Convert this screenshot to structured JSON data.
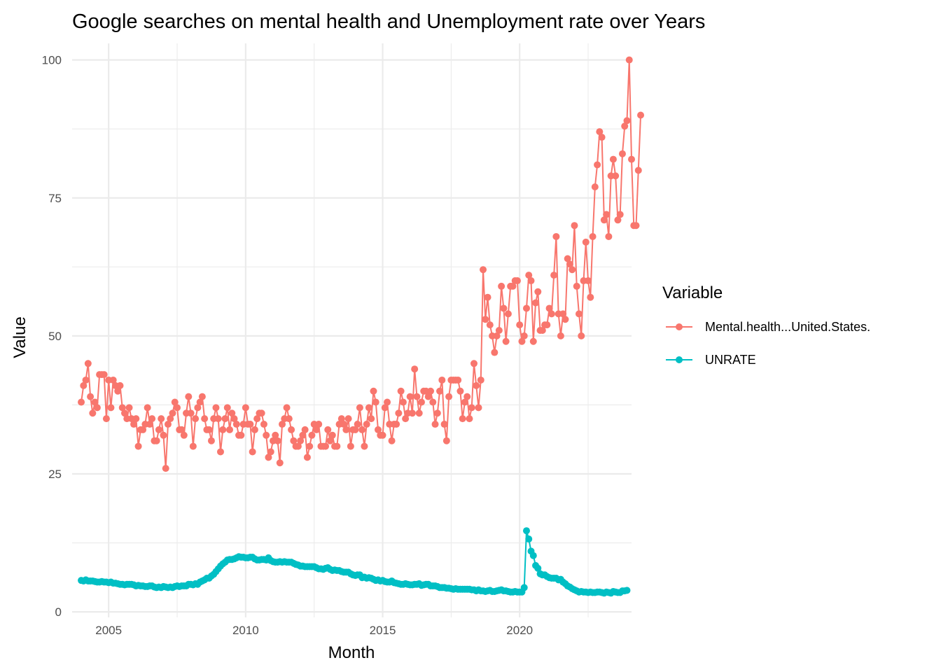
{
  "chart_data": {
    "type": "line",
    "title": "Google searches on mental health and Unemployment rate over Years",
    "xlabel": "Month",
    "ylabel": "Value",
    "x_ticks": [
      "2005",
      "2010",
      "2015",
      "2020"
    ],
    "y_ticks": [
      "0",
      "25",
      "50",
      "75",
      "100"
    ],
    "xlim": [
      "2003-09",
      "2024-02"
    ],
    "ylim": [
      -1,
      103
    ],
    "grid": true,
    "legend_position": "right",
    "legend_title": "Variable",
    "x_start": "2004-01",
    "x_step": "1 month",
    "series": [
      {
        "name": "Mental.health...United.States.",
        "color": "#F8766D",
        "values": [
          38,
          41,
          42,
          45,
          39,
          36,
          38,
          37,
          43,
          43,
          43,
          35,
          42,
          37,
          42,
          41,
          40,
          41,
          37,
          36,
          35,
          37,
          35,
          34,
          35,
          30,
          33,
          33,
          34,
          37,
          34,
          35,
          31,
          31,
          33,
          35,
          32,
          26,
          34,
          35,
          36,
          38,
          37,
          33,
          33,
          32,
          36,
          39,
          36,
          30,
          35,
          37,
          38,
          39,
          35,
          33,
          33,
          31,
          35,
          37,
          35,
          29,
          33,
          35,
          37,
          33,
          36,
          35,
          34,
          32,
          32,
          34,
          37,
          34,
          34,
          29,
          33,
          35,
          36,
          36,
          34,
          32,
          28,
          29,
          31,
          32,
          31,
          27,
          34,
          35,
          37,
          35,
          33,
          31,
          30,
          30,
          31,
          32,
          33,
          28,
          30,
          32,
          34,
          33,
          34,
          30,
          30,
          30,
          33,
          31,
          32,
          30,
          30,
          34,
          35,
          34,
          33,
          35,
          30,
          33,
          33,
          34,
          37,
          33,
          30,
          34,
          37,
          35,
          40,
          38,
          33,
          32,
          32,
          37,
          38,
          34,
          31,
          34,
          34,
          36,
          40,
          38,
          35,
          36,
          39,
          36,
          44,
          39,
          36,
          38,
          40,
          40,
          39,
          40,
          38,
          34,
          36,
          40,
          42,
          34,
          31,
          39,
          42,
          42,
          42,
          42,
          40,
          35,
          38,
          39,
          35,
          37,
          45,
          41,
          37,
          42,
          62,
          53,
          57,
          52,
          50,
          47,
          50,
          51,
          59,
          55,
          49,
          54,
          59,
          59,
          60,
          60,
          52,
          49,
          50,
          55,
          61,
          60,
          49,
          56,
          58,
          51,
          51,
          52,
          52,
          55,
          54,
          61,
          68,
          54,
          50,
          54,
          53,
          64,
          63,
          62,
          70,
          59,
          54,
          50,
          60,
          67,
          60,
          57,
          68,
          77,
          81,
          87,
          86,
          71,
          72,
          68,
          79,
          82,
          79,
          71,
          72,
          83,
          88,
          89,
          100,
          82,
          70,
          70,
          80,
          90
        ]
      },
      {
        "name": "UNRATE",
        "color": "#00BFC4",
        "values": [
          5.7,
          5.6,
          5.8,
          5.6,
          5.6,
          5.6,
          5.5,
          5.4,
          5.4,
          5.5,
          5.4,
          5.4,
          5.3,
          5.4,
          5.2,
          5.2,
          5.1,
          5.0,
          5.0,
          4.9,
          5.0,
          5.0,
          5.0,
          4.9,
          4.7,
          4.8,
          4.7,
          4.7,
          4.6,
          4.6,
          4.7,
          4.7,
          4.5,
          4.4,
          4.5,
          4.4,
          4.6,
          4.5,
          4.4,
          4.5,
          4.4,
          4.6,
          4.7,
          4.6,
          4.7,
          4.7,
          4.7,
          5.0,
          5.0,
          4.9,
          5.1,
          5.0,
          5.4,
          5.6,
          5.8,
          6.1,
          6.1,
          6.5,
          6.8,
          7.3,
          7.8,
          8.3,
          8.7,
          9.0,
          9.4,
          9.5,
          9.5,
          9.6,
          9.8,
          10.0,
          9.9,
          9.9,
          9.8,
          9.8,
          9.9,
          9.9,
          9.6,
          9.4,
          9.4,
          9.5,
          9.5,
          9.4,
          9.8,
          9.3,
          9.1,
          9.0,
          9.0,
          9.1,
          9.0,
          9.1,
          9.0,
          9.0,
          9.0,
          8.8,
          8.6,
          8.5,
          8.3,
          8.3,
          8.2,
          8.2,
          8.2,
          8.2,
          8.2,
          8.0,
          7.8,
          7.8,
          7.7,
          7.9,
          8.0,
          7.7,
          7.5,
          7.6,
          7.5,
          7.5,
          7.3,
          7.2,
          7.2,
          7.2,
          6.9,
          6.7,
          6.6,
          6.7,
          6.7,
          6.2,
          6.3,
          6.1,
          6.2,
          6.1,
          5.9,
          5.7,
          5.8,
          5.6,
          5.7,
          5.5,
          5.4,
          5.4,
          5.6,
          5.3,
          5.2,
          5.1,
          5.0,
          5.0,
          5.1,
          5.0,
          4.9,
          4.9,
          5.0,
          5.0,
          5.1,
          4.8,
          4.9,
          5.0,
          5.0,
          4.7,
          4.7,
          4.7,
          4.6,
          4.4,
          4.4,
          4.4,
          4.3,
          4.3,
          4.2,
          4.1,
          4.2,
          4.1,
          4.1,
          4.1,
          4.1,
          4.1,
          4.1,
          4.0,
          4.0,
          3.8,
          4.0,
          3.8,
          3.8,
          3.7,
          3.8,
          3.9,
          3.7,
          3.7,
          3.8,
          3.9,
          4.0,
          3.8,
          3.8,
          3.7,
          3.6,
          3.6,
          3.7,
          3.6,
          3.6,
          3.6,
          4.4,
          14.7,
          13.2,
          11.0,
          10.2,
          8.4,
          7.9,
          6.9,
          6.7,
          6.7,
          6.4,
          6.2,
          6.1,
          6.1,
          6.1,
          5.8,
          5.9,
          5.4,
          5.1,
          4.7,
          4.5,
          4.2,
          4.0,
          3.8,
          3.6,
          3.7,
          3.6,
          3.6,
          3.5,
          3.6,
          3.5,
          3.5,
          3.6,
          3.6,
          3.5,
          3.4,
          3.6,
          3.5,
          3.4,
          3.7,
          3.6,
          3.5,
          3.5,
          3.8,
          3.8,
          3.9
        ]
      }
    ]
  }
}
